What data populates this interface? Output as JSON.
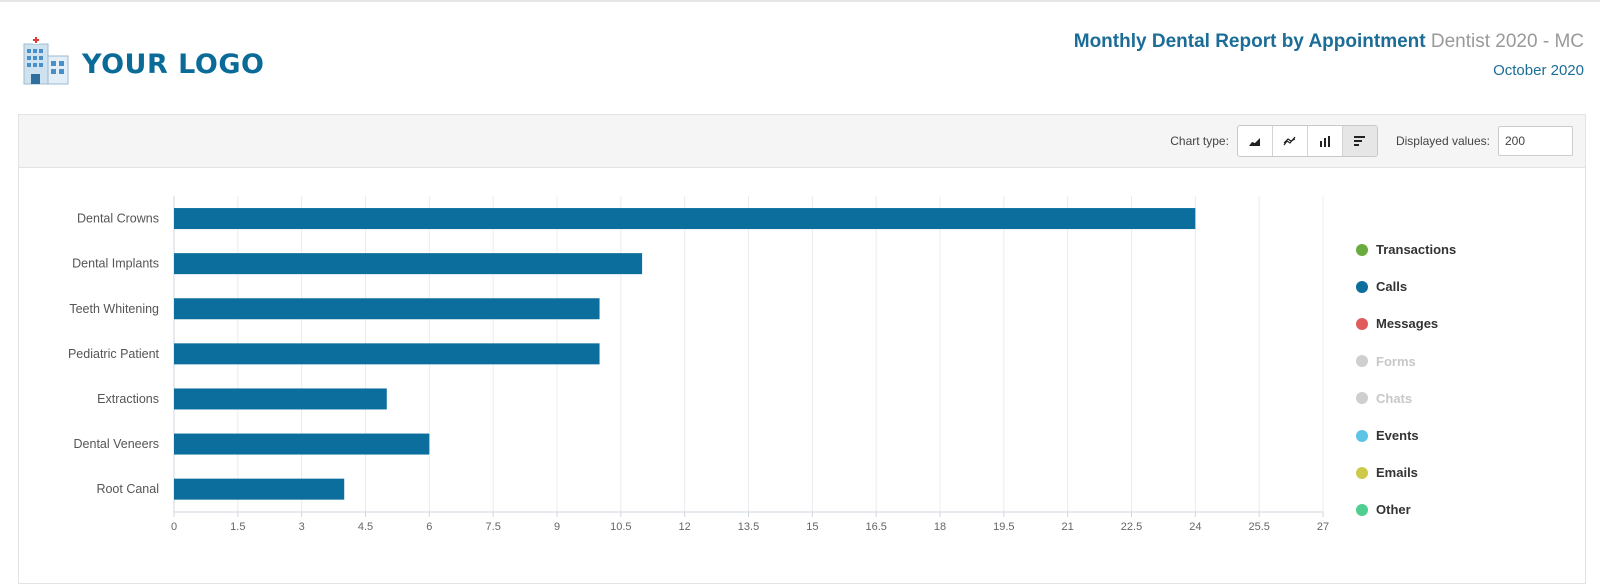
{
  "header": {
    "logo_text": "YOUR LOGO",
    "title": "Monthly Dental Report by Appointment",
    "subtitle": "Dentist 2020 - MC",
    "month": "October 2020"
  },
  "toolbar": {
    "chart_type_label": "Chart type:",
    "chart_types": [
      {
        "icon": "area-chart-icon",
        "active": false
      },
      {
        "icon": "line-chart-icon",
        "active": false
      },
      {
        "icon": "column-chart-icon",
        "active": false
      },
      {
        "icon": "bar-chart-icon",
        "active": true
      }
    ],
    "displayed_values_label": "Displayed values:",
    "displayed_values": "200"
  },
  "chart_data": {
    "type": "bar",
    "orientation": "horizontal",
    "categories": [
      "Dental Crowns",
      "Dental Implants",
      "Teeth Whitening",
      "Pediatric Patient",
      "Extractions",
      "Dental Veneers",
      "Root Canal"
    ],
    "values": [
      24,
      11,
      10,
      10,
      5,
      6,
      4
    ],
    "color": "#0b6e9d",
    "xlim": [
      0,
      27
    ],
    "xticks": [
      "0",
      "1.5",
      "3",
      "4.5",
      "6",
      "7.5",
      "9",
      "10.5",
      "12",
      "13.5",
      "15",
      "16.5",
      "18",
      "19.5",
      "21",
      "22.5",
      "24",
      "25.5",
      "27"
    ],
    "grid": true,
    "legend_position": "right"
  },
  "legend": [
    {
      "label": "Transactions",
      "color": "#6aab3f",
      "muted": false
    },
    {
      "label": "Calls",
      "color": "#0b6e9d",
      "muted": false
    },
    {
      "label": "Messages",
      "color": "#e05c5c",
      "muted": false
    },
    {
      "label": "Forms",
      "color": "#cfcfcf",
      "muted": true
    },
    {
      "label": "Chats",
      "color": "#cfcfcf",
      "muted": true
    },
    {
      "label": "Events",
      "color": "#5ec4e6",
      "muted": false
    },
    {
      "label": "Emails",
      "color": "#cfc94a",
      "muted": false
    },
    {
      "label": "Other",
      "color": "#4fcf8f",
      "muted": false
    }
  ]
}
